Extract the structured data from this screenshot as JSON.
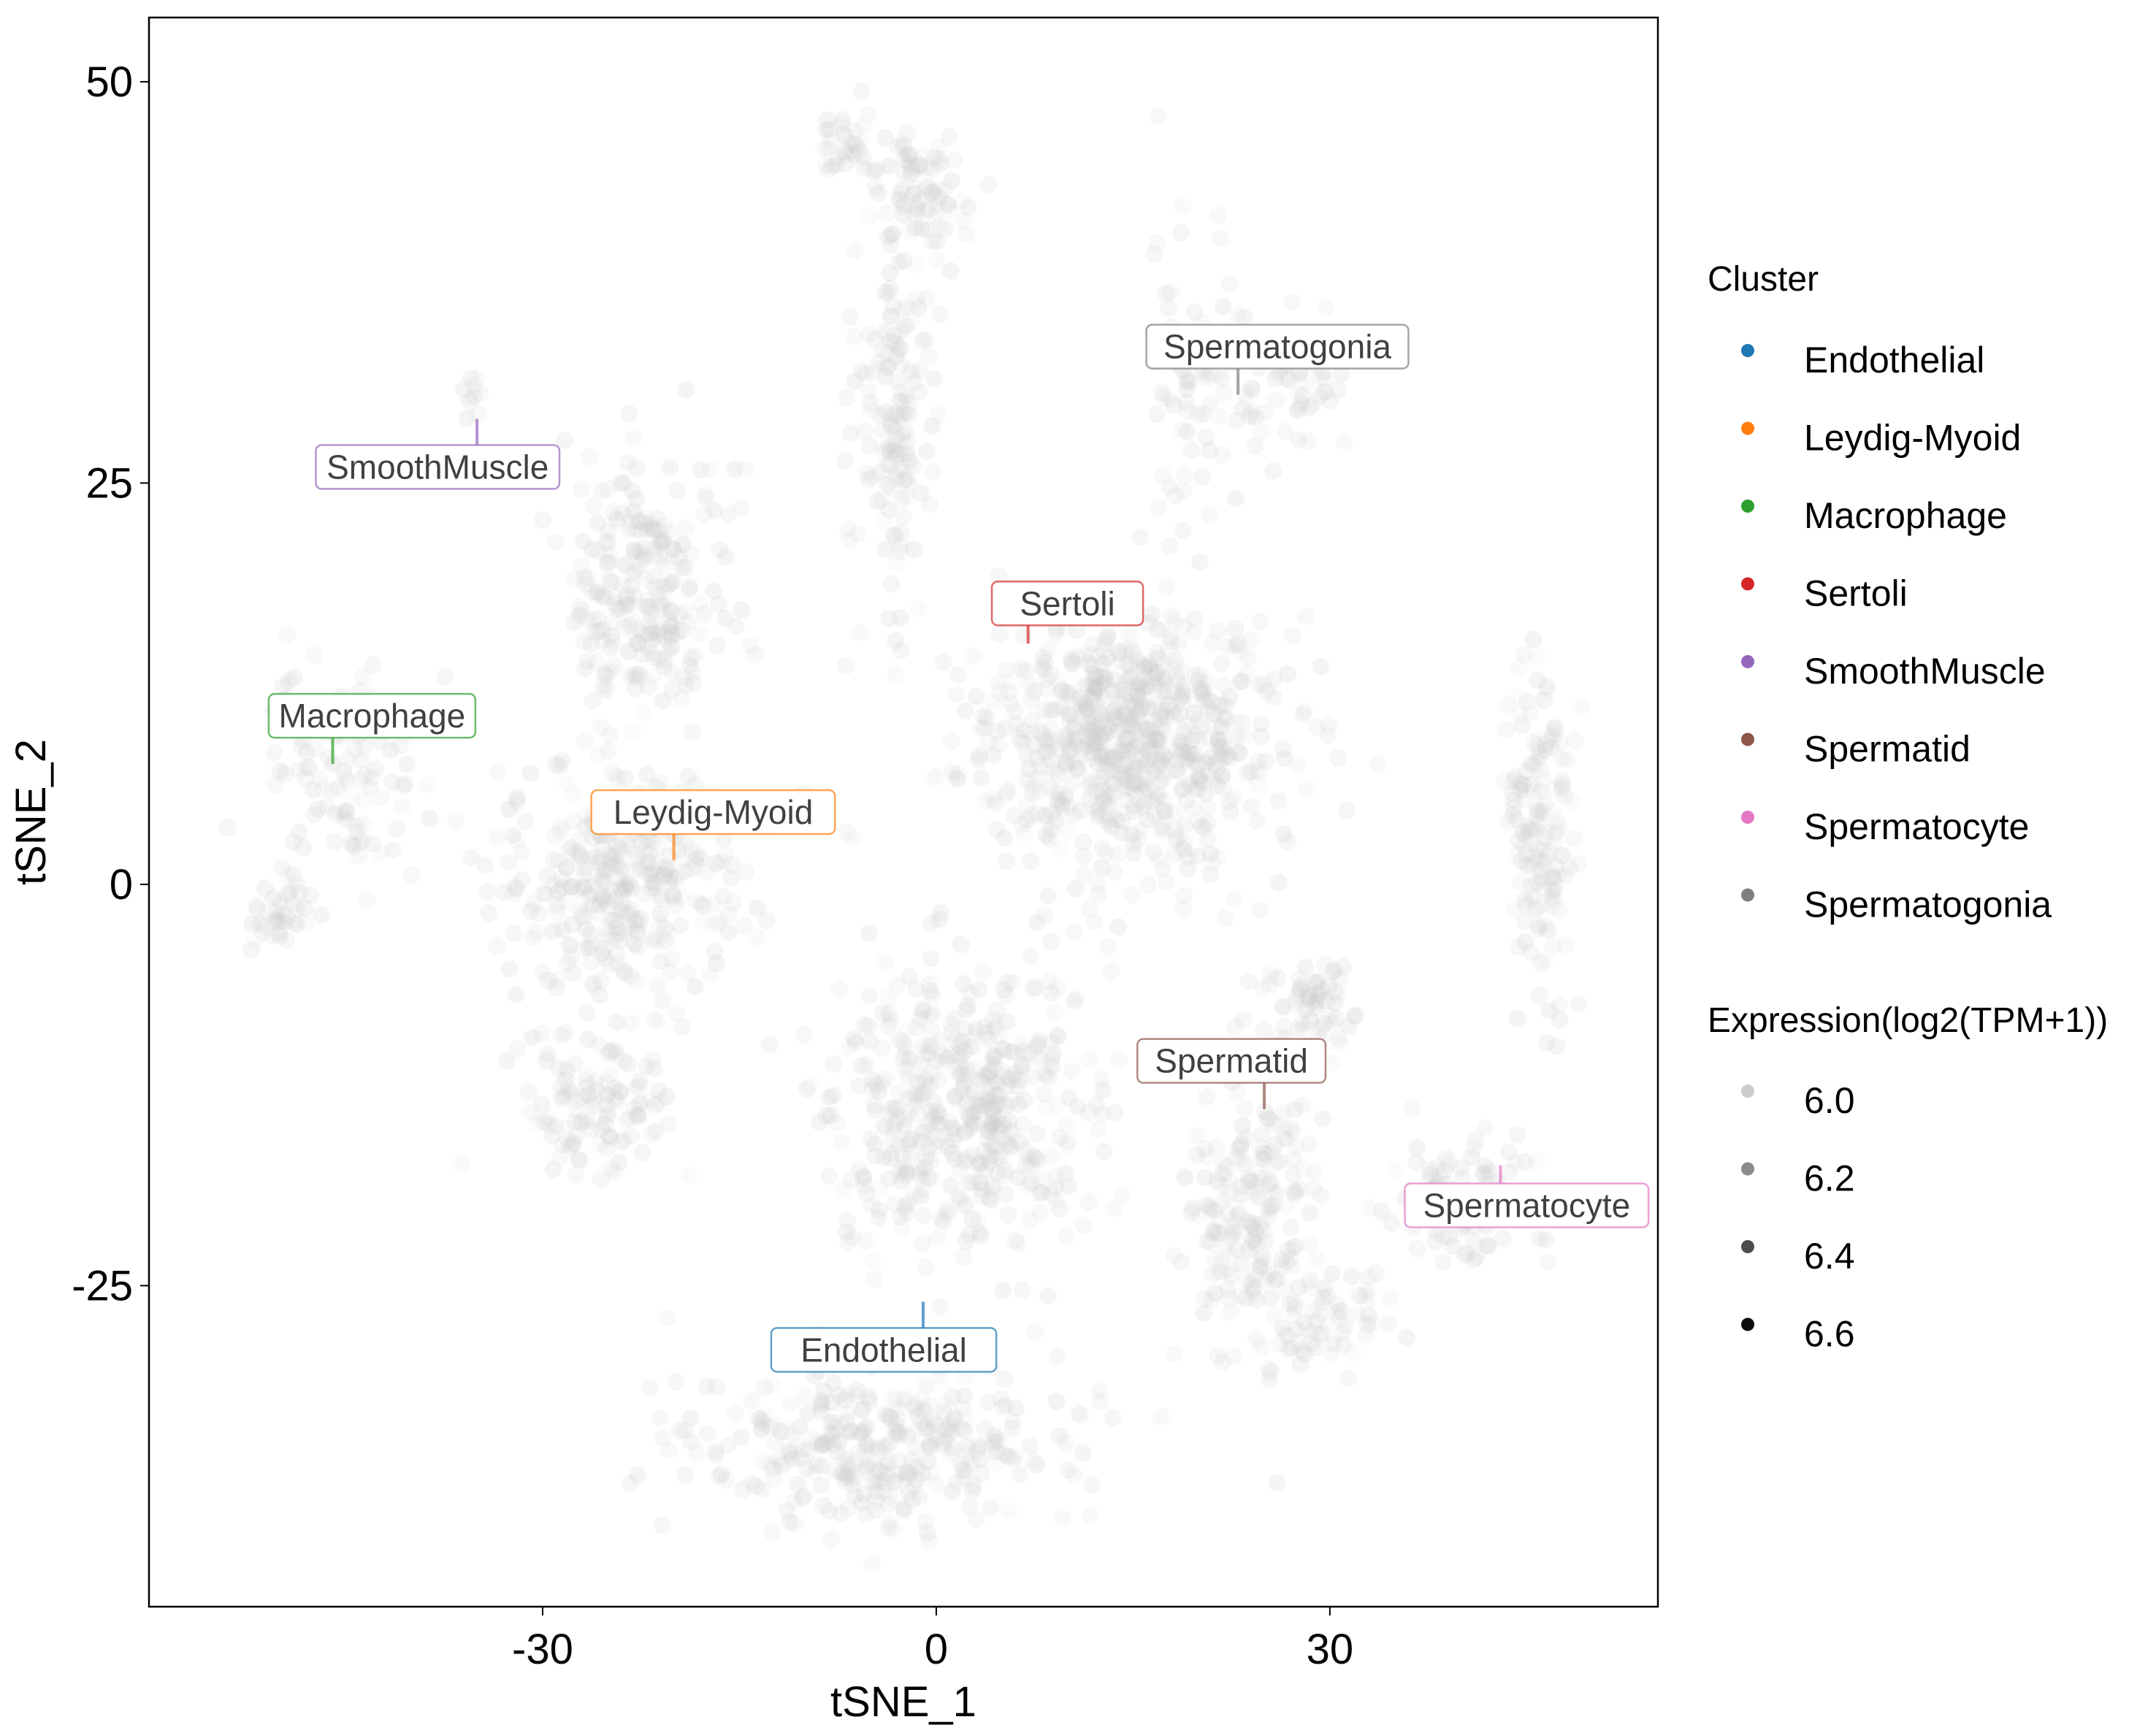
{
  "chart_data": {
    "type": "scatter",
    "xlabel": "tSNE_1",
    "ylabel": "tSNE_2",
    "xlim": [
      -60,
      55
    ],
    "ylim": [
      -45,
      54
    ],
    "x_ticks": [
      -30,
      0,
      30
    ],
    "x_tick_labels": [
      "-30",
      "0",
      "30"
    ],
    "y_ticks": [
      -25,
      0,
      25,
      50
    ],
    "y_tick_labels": [
      "-25",
      "0",
      "25",
      "50"
    ],
    "grid": false,
    "legend_position": "right",
    "legend": {
      "cluster_title": "Cluster",
      "clusters": [
        {
          "name": "Endothelial",
          "color": "#1f77b4"
        },
        {
          "name": "Leydig-Myoid",
          "color": "#ff7f0e"
        },
        {
          "name": "Macrophage",
          "color": "#2ca02c"
        },
        {
          "name": "Sertoli",
          "color": "#d62728"
        },
        {
          "name": "SmoothMuscle",
          "color": "#9467bd"
        },
        {
          "name": "Spermatid",
          "color": "#8c564b"
        },
        {
          "name": "Spermatocyte",
          "color": "#e377c2"
        },
        {
          "name": "Spermatogonia",
          "color": "#7f7f7f"
        }
      ],
      "expression_title": "Expression(log2(TPM+1))",
      "expression_levels": [
        "6.0",
        "6.2",
        "6.4",
        "6.6"
      ]
    },
    "point_color": "#c8c8c8",
    "clusters": [
      {
        "name": "Sertoli",
        "color": "#d62728",
        "label_at": [
          10,
          17.5
        ],
        "anchor": [
          7,
          15
        ],
        "regions": [
          {
            "cx": 14,
            "cy": 9,
            "rx": 12,
            "ry": 8,
            "n": 700
          }
        ]
      },
      {
        "name": "Spermatogonia",
        "color": "#7f7f7f",
        "label_at": [
          26,
          33.5
        ],
        "anchor": [
          23,
          30.5
        ],
        "regions": [
          {
            "cx": 20,
            "cy": 32,
            "rx": 4,
            "ry": 9,
            "n": 80
          },
          {
            "cx": 27,
            "cy": 31,
            "rx": 5,
            "ry": 4,
            "n": 60
          },
          {
            "cx": -1,
            "cy": 43,
            "rx": 4,
            "ry": 4,
            "n": 80
          },
          {
            "cx": -3,
            "cy": 30,
            "rx": 3,
            "ry": 12,
            "n": 150
          },
          {
            "cx": -7,
            "cy": 46,
            "rx": 2,
            "ry": 2,
            "n": 30
          }
        ]
      },
      {
        "name": "SmoothMuscle",
        "color": "#9467bd",
        "label_at": [
          -38,
          26
        ],
        "anchor": [
          -35,
          29
        ],
        "regions": [
          {
            "cx": -35.5,
            "cy": 30,
            "rx": 0.8,
            "ry": 2,
            "n": 10
          }
        ]
      },
      {
        "name": "Macrophage",
        "color": "#2ca02c",
        "label_at": [
          -43,
          10.5
        ],
        "anchor": [
          -46,
          7.5
        ],
        "regions": [
          {
            "cx": -45,
            "cy": 7,
            "rx": 6,
            "ry": 6,
            "n": 110
          },
          {
            "cx": -50,
            "cy": -2,
            "rx": 2,
            "ry": 3,
            "n": 40
          }
        ]
      },
      {
        "name": "Leydig-Myoid",
        "color": "#ff7f0e",
        "label_at": [
          -17,
          4.5
        ],
        "anchor": [
          -20,
          1.5
        ],
        "regions": [
          {
            "cx": -22,
            "cy": 18,
            "rx": 6,
            "ry": 9,
            "n": 240
          },
          {
            "cx": -24,
            "cy": 0,
            "rx": 9,
            "ry": 8,
            "n": 340
          },
          {
            "cx": -26,
            "cy": -14,
            "rx": 6,
            "ry": 4,
            "n": 110
          }
        ]
      },
      {
        "name": "Endothelial",
        "color": "#1f77b4",
        "label_at": [
          -4,
          -29
        ],
        "anchor": [
          -1,
          -26
        ],
        "regions": [
          {
            "cx": 2,
            "cy": -14,
            "rx": 10,
            "ry": 9,
            "n": 450
          },
          {
            "cx": -4,
            "cy": -35,
            "rx": 14,
            "ry": 5,
            "n": 330
          }
        ]
      },
      {
        "name": "Spermatid",
        "color": "#8c564b",
        "label_at": [
          22.5,
          -11
        ],
        "anchor": [
          25,
          -14
        ],
        "regions": [
          {
            "cx": 28,
            "cy": -8,
            "rx": 4,
            "ry": 3,
            "n": 70
          },
          {
            "cx": 24,
            "cy": -20,
            "rx": 5,
            "ry": 9,
            "n": 190
          },
          {
            "cx": 30,
            "cy": -27,
            "rx": 4,
            "ry": 3,
            "n": 60
          }
        ]
      },
      {
        "name": "Spermatocyte",
        "color": "#e377c2",
        "label_at": [
          45,
          -20
        ],
        "anchor": [
          43,
          -17.5
        ],
        "regions": [
          {
            "cx": 46,
            "cy": 3,
            "rx": 2.5,
            "ry": 12,
            "n": 150
          },
          {
            "cx": 40,
            "cy": -20,
            "rx": 6,
            "ry": 4,
            "n": 90
          }
        ]
      }
    ]
  }
}
